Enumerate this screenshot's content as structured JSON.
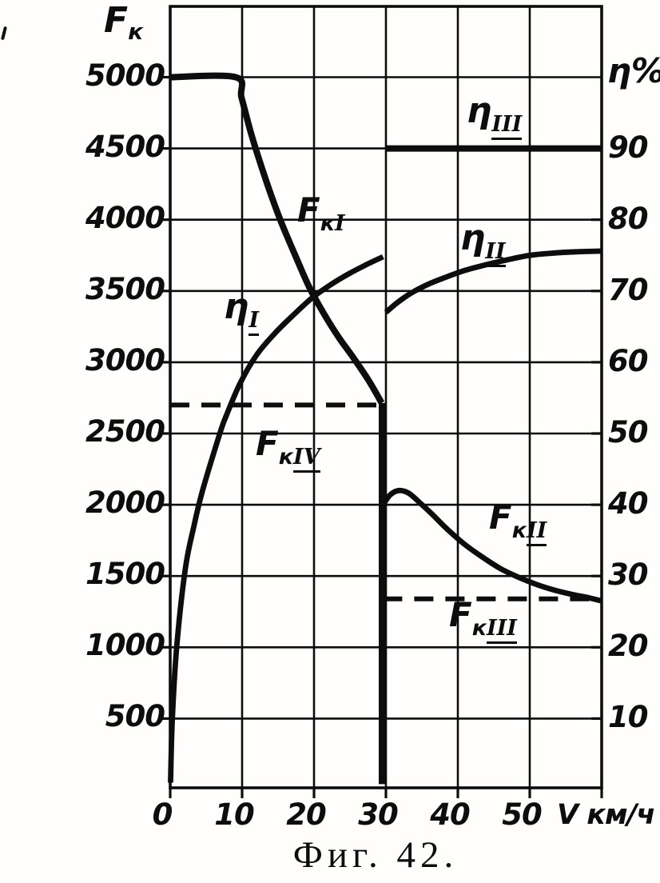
{
  "labels": {
    "y_left_base": "F",
    "y_left_sub": "к",
    "y_right": "η%",
    "x_axis": "V км/ч"
  },
  "curve_labels": [
    {
      "id": "FkI",
      "base": "F",
      "sub": "к",
      "rn": "I",
      "underlined": false
    },
    {
      "id": "FkII",
      "base": "F",
      "sub": "к",
      "rn": "II",
      "underlined": true
    },
    {
      "id": "FkIII",
      "base": "F",
      "sub": "к",
      "rn": "III",
      "underlined": true
    },
    {
      "id": "FkIV",
      "base": "F",
      "sub": "к",
      "rn": "IV",
      "underlined": true
    },
    {
      "id": "etaI",
      "base": "η",
      "sub": "",
      "rn": "I",
      "underlined": true
    },
    {
      "id": "etaII",
      "base": "η",
      "sub": "",
      "rn": "II",
      "underlined": true
    },
    {
      "id": "etaIII",
      "base": "η",
      "sub": "",
      "rn": "III",
      "underlined": true
    }
  ],
  "chart_data": {
    "type": "line",
    "title": "Фиг. 42.",
    "x_axis": {
      "label": "V км/ч",
      "min": 0,
      "max": 60,
      "grid_step": 10,
      "tick_labels": [
        0,
        10,
        20,
        30,
        40,
        50
      ]
    },
    "y_left": {
      "label": "Fк",
      "min": 0,
      "max": 5500,
      "gridline_values": [
        500,
        1000,
        1500,
        2000,
        2500,
        3000,
        3500,
        4000,
        4500,
        5000
      ],
      "tick_labels": [
        5000,
        4500,
        4000,
        3500,
        3000,
        2500,
        2000,
        1500,
        1000,
        500
      ]
    },
    "y_right": {
      "label": "η%",
      "min": 0,
      "max": 100,
      "tick_labels": [
        90,
        80,
        70,
        60,
        50,
        40,
        30,
        20,
        10
      ]
    },
    "grid": true,
    "legend": "labels on curves",
    "series": [
      {
        "id": "FkI",
        "name": "FкI",
        "axis": "left",
        "style": "solid-thick",
        "points": [
          [
            0,
            5000
          ],
          [
            9.1,
            5000
          ],
          [
            9.9,
            4860
          ],
          [
            11,
            4650
          ],
          [
            12,
            4480
          ],
          [
            13.5,
            4250
          ],
          [
            15.3,
            4000
          ],
          [
            17.3,
            3760
          ],
          [
            19.4,
            3520
          ],
          [
            21.5,
            3330
          ],
          [
            23.5,
            3170
          ],
          [
            25.5,
            3030
          ],
          [
            27.5,
            2880
          ],
          [
            29.4,
            2715
          ]
        ]
      },
      {
        "id": "gear",
        "name": "gear-change line",
        "axis": "left",
        "style": "solid-thick-vertical",
        "points": [
          [
            29.5,
            2715
          ],
          [
            29.5,
            40
          ]
        ]
      },
      {
        "id": "FkII",
        "name": "FкII",
        "axis": "left",
        "style": "solid",
        "points": [
          [
            29.6,
            2000
          ],
          [
            30.6,
            2070
          ],
          [
            31.8,
            2100
          ],
          [
            33.2,
            2080
          ],
          [
            34.8,
            2010
          ],
          [
            36.5,
            1930
          ],
          [
            38.5,
            1830
          ],
          [
            41,
            1720
          ],
          [
            43.5,
            1630
          ],
          [
            46,
            1550
          ],
          [
            48.5,
            1490
          ],
          [
            51,
            1440
          ],
          [
            53.5,
            1400
          ],
          [
            56,
            1370
          ],
          [
            58,
            1350
          ],
          [
            60,
            1325
          ]
        ]
      },
      {
        "id": "FkIII",
        "name": "FкIII",
        "axis": "left",
        "style": "dashed",
        "points": [
          [
            29.6,
            1340
          ],
          [
            60,
            1340
          ]
        ]
      },
      {
        "id": "FkIV",
        "name": "FкIV",
        "axis": "left",
        "style": "dashed",
        "points": [
          [
            0,
            2700
          ],
          [
            28.9,
            2700
          ]
        ]
      },
      {
        "id": "etaI",
        "name": "ηI",
        "axis": "right",
        "style": "solid",
        "points": [
          [
            0.05,
            1
          ],
          [
            0.3,
            10
          ],
          [
            0.9,
            20
          ],
          [
            2.1,
            31
          ],
          [
            3.3,
            37
          ],
          [
            4.5,
            42
          ],
          [
            6.9,
            50
          ],
          [
            7.8,
            52.5
          ],
          [
            9.7,
            57
          ],
          [
            12,
            61
          ],
          [
            14.5,
            64
          ],
          [
            17,
            66.5
          ],
          [
            19.7,
            69
          ],
          [
            22.5,
            71
          ],
          [
            25,
            72.5
          ],
          [
            27.5,
            73.8
          ],
          [
            29.6,
            74.8
          ]
        ]
      },
      {
        "id": "etaII",
        "name": "ηII",
        "axis": "right",
        "style": "solid",
        "points": [
          [
            30,
            67
          ],
          [
            31.5,
            68.3
          ],
          [
            33.5,
            69.7
          ],
          [
            36,
            71
          ],
          [
            38.5,
            72
          ],
          [
            41,
            72.9
          ],
          [
            44,
            73.7
          ],
          [
            47,
            74.4
          ],
          [
            50,
            75
          ],
          [
            53,
            75.3
          ],
          [
            56.5,
            75.5
          ],
          [
            60,
            75.6
          ]
        ]
      },
      {
        "id": "etaIII",
        "name": "ηIII",
        "axis": "right",
        "style": "solid-thick",
        "points": [
          [
            29.9,
            90
          ],
          [
            60,
            90
          ]
        ]
      }
    ]
  }
}
